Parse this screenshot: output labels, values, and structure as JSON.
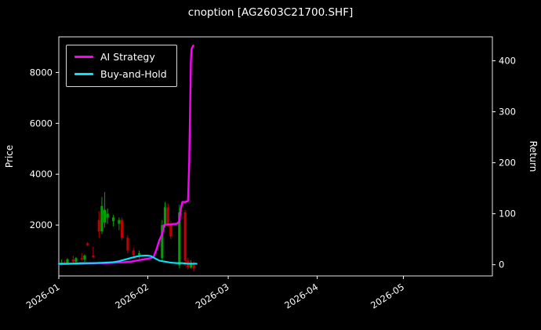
{
  "window": {
    "title": "cnoption [AG2603C21700.SHF]"
  },
  "chart_data": {
    "type": "line",
    "title": "cnoption [AG2603C21700.SHF]",
    "background": "#000000",
    "text_color": "#ffffff",
    "axis_color": "#ffffff",
    "ylabel_left": "Price",
    "ylabel_right": "Return",
    "x_range": [
      0,
      151
    ],
    "x_ticks": [
      {
        "day": 0,
        "label": "2026-01"
      },
      {
        "day": 31,
        "label": "2026-02"
      },
      {
        "day": 59,
        "label": "2026-03"
      },
      {
        "day": 90,
        "label": "2026-04"
      },
      {
        "day": 120,
        "label": "2026-05"
      }
    ],
    "left_axis": {
      "min": 0,
      "max": 9400,
      "ticks": [
        2000,
        4000,
        6000,
        8000
      ]
    },
    "right_axis": {
      "min": -22,
      "max": 447,
      "ticks": [
        0,
        100,
        200,
        300,
        400
      ]
    },
    "legend": [
      {
        "label": "AI Strategy",
        "color": "#ff00ff"
      },
      {
        "label": "Buy-and-Hold",
        "color": "#00e5ff"
      }
    ],
    "candle_colors": {
      "up": "#00a000",
      "down": "#c00000"
    },
    "series": [
      {
        "name": "AI Strategy",
        "axis": "right",
        "color": "#ff00ff",
        "width": 2.4,
        "points": [
          [
            0,
            1
          ],
          [
            4,
            2
          ],
          [
            8,
            2
          ],
          [
            12,
            3
          ],
          [
            16,
            3
          ],
          [
            20,
            4
          ],
          [
            23,
            5
          ],
          [
            25,
            6
          ],
          [
            27,
            8
          ],
          [
            29,
            10
          ],
          [
            31,
            12
          ],
          [
            32,
            13
          ],
          [
            33,
            15
          ],
          [
            34,
            30
          ],
          [
            35,
            48
          ],
          [
            36,
            60
          ],
          [
            36.7,
            78
          ],
          [
            38,
            79
          ],
          [
            39,
            79
          ],
          [
            40,
            80
          ],
          [
            41,
            80
          ],
          [
            42,
            85
          ],
          [
            42.5,
            110
          ],
          [
            43,
            123
          ],
          [
            44,
            123
          ],
          [
            45,
            125
          ],
          [
            45.4,
            200
          ],
          [
            45.7,
            300
          ],
          [
            46,
            400
          ],
          [
            46.2,
            423
          ],
          [
            46.8,
            430
          ]
        ]
      },
      {
        "name": "Buy-and-Hold",
        "axis": "right",
        "color": "#00e5ff",
        "width": 2.1,
        "points": [
          [
            0,
            2
          ],
          [
            4,
            2
          ],
          [
            8,
            3
          ],
          [
            12,
            3
          ],
          [
            16,
            4
          ],
          [
            19,
            5
          ],
          [
            21,
            7
          ],
          [
            23,
            10
          ],
          [
            25,
            13
          ],
          [
            27,
            16
          ],
          [
            28,
            17
          ],
          [
            30,
            18
          ],
          [
            31,
            18
          ],
          [
            32,
            17
          ],
          [
            33,
            14
          ],
          [
            34,
            11
          ],
          [
            35,
            8
          ],
          [
            36,
            7
          ],
          [
            37,
            6
          ],
          [
            38,
            5
          ],
          [
            39,
            4
          ],
          [
            41,
            3
          ],
          [
            43,
            3
          ],
          [
            45,
            2
          ],
          [
            47,
            2
          ],
          [
            48,
            2
          ]
        ]
      }
    ],
    "candles": [
      [
        1,
        480,
        650,
        420,
        520
      ],
      [
        2,
        520,
        600,
        430,
        460
      ],
      [
        3,
        460,
        700,
        440,
        650
      ],
      [
        5,
        650,
        800,
        500,
        550
      ],
      [
        6,
        550,
        750,
        500,
        700
      ],
      [
        8,
        700,
        900,
        600,
        640
      ],
      [
        9,
        640,
        850,
        550,
        800
      ],
      [
        10,
        1280,
        1330,
        1180,
        1210
      ],
      [
        12,
        800,
        1150,
        700,
        730
      ],
      [
        14,
        2200,
        2550,
        1500,
        1750
      ],
      [
        15,
        1750,
        3100,
        1650,
        2750
      ],
      [
        16,
        2100,
        3300,
        1900,
        2600
      ],
      [
        17,
        2300,
        2650,
        2050,
        2450
      ],
      [
        19,
        2150,
        2400,
        1950,
        2300
      ],
      [
        21,
        2050,
        2300,
        1800,
        2200
      ],
      [
        22,
        2200,
        2300,
        1400,
        1500
      ],
      [
        24,
        1500,
        1600,
        900,
        1000
      ],
      [
        26,
        1000,
        1100,
        700,
        820
      ],
      [
        28,
        820,
        1000,
        690,
        900
      ],
      [
        36,
        700,
        2200,
        600,
        2000
      ],
      [
        37,
        2000,
        2900,
        1900,
        2700
      ],
      [
        38,
        2700,
        2850,
        1950,
        2050
      ],
      [
        39,
        2050,
        2150,
        1450,
        1550
      ],
      [
        42,
        420,
        2800,
        300,
        2500
      ],
      [
        44,
        2500,
        2600,
        400,
        600
      ],
      [
        45,
        600,
        720,
        240,
        340
      ],
      [
        46,
        340,
        620,
        290,
        520
      ],
      [
        47,
        520,
        560,
        180,
        290
      ]
    ]
  }
}
